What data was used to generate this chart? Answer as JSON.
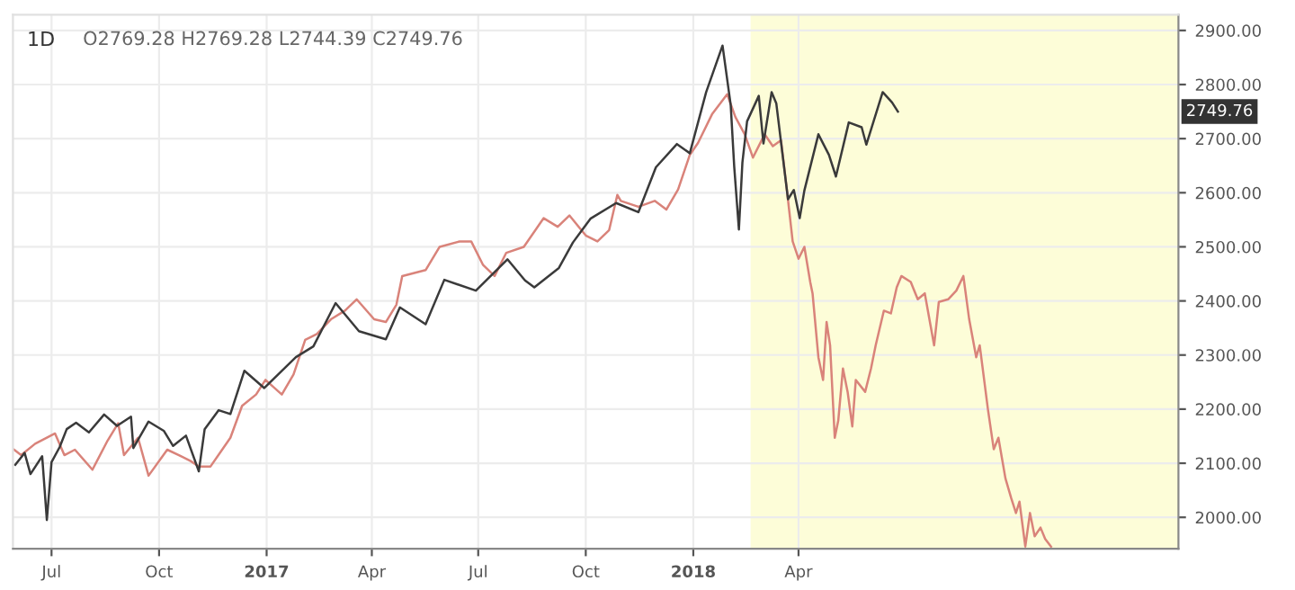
{
  "chart_data": {
    "type": "line",
    "title": "1D",
    "annotations": [
      "O2769.28 H2769.28 L2744.39 C2749.76",
      "2749.76"
    ],
    "xlim": [
      "2016-05-29",
      "2019-02-20"
    ],
    "ylim": [
      1942,
      2929
    ],
    "xticks": [
      {
        "value": "2016-07-01",
        "label": "Jul"
      },
      {
        "value": "2016-10-01",
        "label": "Oct"
      },
      {
        "value": "2017-01-01",
        "label": "2017"
      },
      {
        "value": "2017-04-01",
        "label": "Apr"
      },
      {
        "value": "2017-07-01",
        "label": "Jul"
      },
      {
        "value": "2017-10-01",
        "label": "Oct"
      },
      {
        "value": "2018-01-01",
        "label": "2018"
      },
      {
        "value": "2018-04-01",
        "label": "Apr"
      }
    ],
    "yticks": [
      {
        "value": 2000,
        "label": "2000.00"
      },
      {
        "value": 2100,
        "label": "2100.00"
      },
      {
        "value": 2200,
        "label": "2200.00"
      },
      {
        "value": 2300,
        "label": "2300.00"
      },
      {
        "value": 2400,
        "label": "2400.00"
      },
      {
        "value": 2500,
        "label": "2500.00"
      },
      {
        "value": 2600,
        "label": "2600.00"
      },
      {
        "value": 2700,
        "label": "2700.00"
      },
      {
        "value": 2800,
        "label": "2800.00"
      },
      {
        "value": 2900,
        "label": "2900.00"
      }
    ],
    "grid": true,
    "bands": [
      {
        "axis": "x",
        "from": "2018-02-19",
        "to": "2019-02-20",
        "color": "#fdfdd8"
      }
    ],
    "series": [
      {
        "color": "#d9837a",
        "x": [
          "2016-05-30",
          "2016-06-05",
          "2016-06-17",
          "2016-07-04",
          "2016-07-12",
          "2016-07-21",
          "2016-08-05",
          "2016-08-18",
          "2016-08-27",
          "2016-09-01",
          "2016-09-13",
          "2016-09-22",
          "2016-10-08",
          "2016-10-18",
          "2016-10-28",
          "2016-11-04",
          "2016-11-14",
          "2016-12-01",
          "2016-12-11",
          "2016-12-23",
          "2016-12-31",
          "2017-01-14",
          "2017-01-24",
          "2017-02-03",
          "2017-02-13",
          "2017-02-25",
          "2017-03-09",
          "2017-03-19",
          "2017-04-03",
          "2017-04-13",
          "2017-04-22",
          "2017-04-27",
          "2017-05-17",
          "2017-05-29",
          "2017-06-15",
          "2017-06-25",
          "2017-07-05",
          "2017-07-15",
          "2017-07-25",
          "2017-08-09",
          "2017-08-26",
          "2017-09-07",
          "2017-09-17",
          "2017-10-01",
          "2017-10-11",
          "2017-10-21",
          "2017-10-28",
          "2017-10-31",
          "2017-11-15",
          "2017-11-29",
          "2017-12-09",
          "2017-12-19",
          "2017-12-29",
          "2018-01-05",
          "2018-01-17",
          "2018-01-30",
          "2018-02-06",
          "2018-02-14",
          "2018-02-21",
          "2018-03-03",
          "2018-03-10",
          "2018-03-17",
          "2018-03-22",
          "2018-03-27",
          "2018-04-01",
          "2018-04-06",
          "2018-04-11",
          "2018-04-13",
          "2018-04-18",
          "2018-04-22",
          "2018-04-25",
          "2018-04-28",
          "2018-05-02",
          "2018-05-05",
          "2018-05-09",
          "2018-05-13",
          "2018-05-17",
          "2018-05-20",
          "2018-05-28",
          "2018-06-02",
          "2018-06-06",
          "2018-06-13",
          "2018-06-19",
          "2018-06-24",
          "2018-06-28",
          "2018-07-06",
          "2018-07-12",
          "2018-07-18",
          "2018-07-26",
          "2018-07-30",
          "2018-08-07",
          "2018-08-14",
          "2018-08-20",
          "2018-08-25",
          "2018-08-31",
          "2018-09-03",
          "2018-09-10",
          "2018-09-15",
          "2018-09-19",
          "2018-09-25",
          "2018-09-30",
          "2018-10-04",
          "2018-10-07",
          "2018-10-12",
          "2018-10-16",
          "2018-10-20",
          "2018-10-25",
          "2018-10-29",
          "2018-11-03"
        ],
        "values": [
          2125,
          2115,
          2136,
          2155,
          2115,
          2125,
          2088,
          2142,
          2174,
          2115,
          2147,
          2077,
          2125,
          2115,
          2104,
          2094,
          2094,
          2147,
          2206,
          2227,
          2254,
          2227,
          2264,
          2328,
          2339,
          2366,
          2382,
          2403,
          2366,
          2361,
          2393,
          2446,
          2457,
          2500,
          2510,
          2510,
          2467,
          2446,
          2489,
          2500,
          2553,
          2537,
          2558,
          2521,
          2510,
          2531,
          2596,
          2585,
          2574,
          2585,
          2569,
          2606,
          2670,
          2692,
          2745,
          2782,
          2740,
          2708,
          2665,
          2708,
          2686,
          2697,
          2606,
          2510,
          2478,
          2500,
          2435,
          2414,
          2296,
          2254,
          2361,
          2318,
          2147,
          2179,
          2275,
          2232,
          2168,
          2254,
          2232,
          2275,
          2318,
          2382,
          2377,
          2425,
          2446,
          2435,
          2403,
          2414,
          2318,
          2398,
          2403,
          2419,
          2446,
          2366,
          2296,
          2318,
          2200,
          2126,
          2147,
          2072,
          2035,
          2008,
          2029,
          1946,
          2008,
          1965,
          1981,
          1960,
          1946
        ]
      },
      {
        "color": "#3a3a3a",
        "x": [
          "2016-05-31",
          "2016-06-08",
          "2016-06-13",
          "2016-06-23",
          "2016-06-27",
          "2016-07-01",
          "2016-07-08",
          "2016-07-14",
          "2016-07-22",
          "2016-08-02",
          "2016-08-15",
          "2016-08-26",
          "2016-09-07",
          "2016-09-09",
          "2016-09-22",
          "2016-10-05",
          "2016-10-13",
          "2016-10-24",
          "2016-11-04",
          "2016-11-09",
          "2016-11-21",
          "2016-12-01",
          "2016-12-13",
          "2016-12-30",
          "2017-01-26",
          "2017-02-10",
          "2017-03-01",
          "2017-03-21",
          "2017-04-13",
          "2017-04-25",
          "2017-05-17",
          "2017-06-02",
          "2017-06-29",
          "2017-07-26",
          "2017-08-10",
          "2017-08-18",
          "2017-09-08",
          "2017-09-20",
          "2017-10-05",
          "2017-10-27",
          "2017-11-15",
          "2017-11-30",
          "2017-12-18",
          "2017-12-29",
          "2018-01-12",
          "2018-01-26",
          "2018-02-02",
          "2018-02-05",
          "2018-02-09",
          "2018-02-12",
          "2018-02-16",
          "2018-02-26",
          "2018-03-02",
          "2018-03-09",
          "2018-03-13",
          "2018-03-23",
          "2018-03-28",
          "2018-04-02",
          "2018-04-06",
          "2018-04-18",
          "2018-04-27",
          "2018-05-03",
          "2018-05-14",
          "2018-05-25",
          "2018-05-29",
          "2018-06-12",
          "2018-06-20",
          "2018-06-25"
        ],
        "values": [
          2097,
          2119,
          2080,
          2113,
          1995,
          2102,
          2130,
          2163,
          2175,
          2157,
          2190,
          2169,
          2186,
          2128,
          2177,
          2160,
          2132,
          2151,
          2085,
          2163,
          2198,
          2191,
          2271,
          2239,
          2296,
          2316,
          2396,
          2344,
          2329,
          2388,
          2357,
          2439,
          2419,
          2477,
          2438,
          2425,
          2461,
          2508,
          2552,
          2581,
          2564,
          2647,
          2690,
          2673,
          2786,
          2872,
          2762,
          2648,
          2532,
          2656,
          2732,
          2779,
          2691,
          2786,
          2765,
          2588,
          2605,
          2553,
          2604,
          2708,
          2670,
          2630,
          2730,
          2721,
          2689,
          2786,
          2767,
          2750
        ]
      }
    ]
  }
}
